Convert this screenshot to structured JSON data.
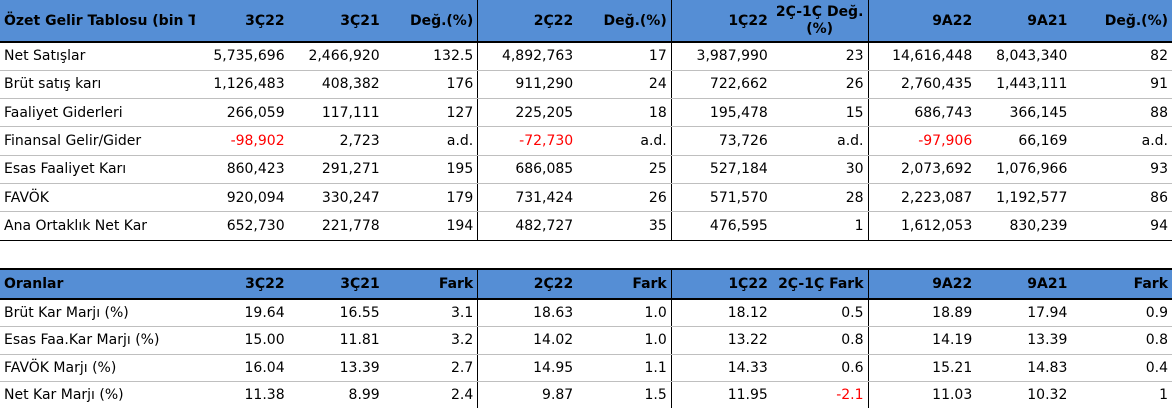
{
  "income": {
    "headers": [
      "Özet Gelir Tablosu (bin TL)",
      "3Ç22",
      "3Ç21",
      "Değ.(%)",
      "2Ç22",
      "Değ.(%)",
      "1Ç22",
      "2Ç-1Ç Değ.(%)",
      "9A22",
      "9A21",
      "Değ.(%)"
    ],
    "rows": [
      {
        "label": "Net Satışlar",
        "cells": [
          "5,735,696",
          "2,466,920",
          "132.5",
          "4,892,763",
          "17",
          "3,987,990",
          "23",
          "14,616,448",
          "8,043,340",
          "82"
        ]
      },
      {
        "label": "Brüt satış karı",
        "cells": [
          "1,126,483",
          "408,382",
          "176",
          "911,290",
          "24",
          "722,662",
          "26",
          "2,760,435",
          "1,443,111",
          "91"
        ]
      },
      {
        "label": "Faaliyet Giderleri",
        "cells": [
          "266,059",
          "117,111",
          "127",
          "225,205",
          "18",
          "195,478",
          "15",
          "686,743",
          "366,145",
          "88"
        ]
      },
      {
        "label": "Finansal Gelir/Gider",
        "cells": [
          "-98,902",
          "2,723",
          "a.d.",
          "-72,730",
          "a.d.",
          "73,726",
          "a.d.",
          "-97,906",
          "66,169",
          "a.d."
        ]
      },
      {
        "label": "Esas Faaliyet Karı",
        "cells": [
          "860,423",
          "291,271",
          "195",
          "686,085",
          "25",
          "527,184",
          "30",
          "2,073,692",
          "1,076,966",
          "93"
        ]
      },
      {
        "label": "FAVÖK",
        "cells": [
          "920,094",
          "330,247",
          "179",
          "731,424",
          "26",
          "571,570",
          "28",
          "2,223,087",
          "1,192,577",
          "86"
        ]
      },
      {
        "label": "Ana Ortaklık Net Kar",
        "cells": [
          "652,730",
          "221,778",
          "194",
          "482,727",
          "35",
          "476,595",
          "1",
          "1,612,053",
          "830,239",
          "94"
        ]
      }
    ]
  },
  "ratios": {
    "headers": [
      "Oranlar",
      "3Ç22",
      "3Ç21",
      "Fark",
      "2Ç22",
      "Fark",
      "1Ç22",
      "2Ç-1Ç Fark",
      "9A22",
      "9A21",
      "Fark"
    ],
    "rows": [
      {
        "label": "Brüt Kar Marjı (%)",
        "cells": [
          "19.64",
          "16.55",
          "3.1",
          "18.63",
          "1.0",
          "18.12",
          "0.5",
          "18.89",
          "17.94",
          "0.9"
        ]
      },
      {
        "label": "Esas Faa.Kar Marjı (%)",
        "cells": [
          "15.00",
          "11.81",
          "3.2",
          "14.02",
          "1.0",
          "13.22",
          "0.8",
          "14.19",
          "13.39",
          "0.8"
        ]
      },
      {
        "label": "FAVÖK Marjı (%)",
        "cells": [
          "16.04",
          "13.39",
          "2.7",
          "14.95",
          "1.1",
          "14.33",
          "0.6",
          "15.21",
          "14.83",
          "0.4"
        ]
      },
      {
        "label": "Net Kar Marjı (%)",
        "cells": [
          "11.38",
          "8.99",
          "2.4",
          "9.87",
          "1.5",
          "11.95",
          "-2.1",
          "11.03",
          "10.32",
          "1"
        ]
      }
    ]
  },
  "colors": {
    "header_bg": "#558ed5",
    "negative": "#ff0000"
  }
}
